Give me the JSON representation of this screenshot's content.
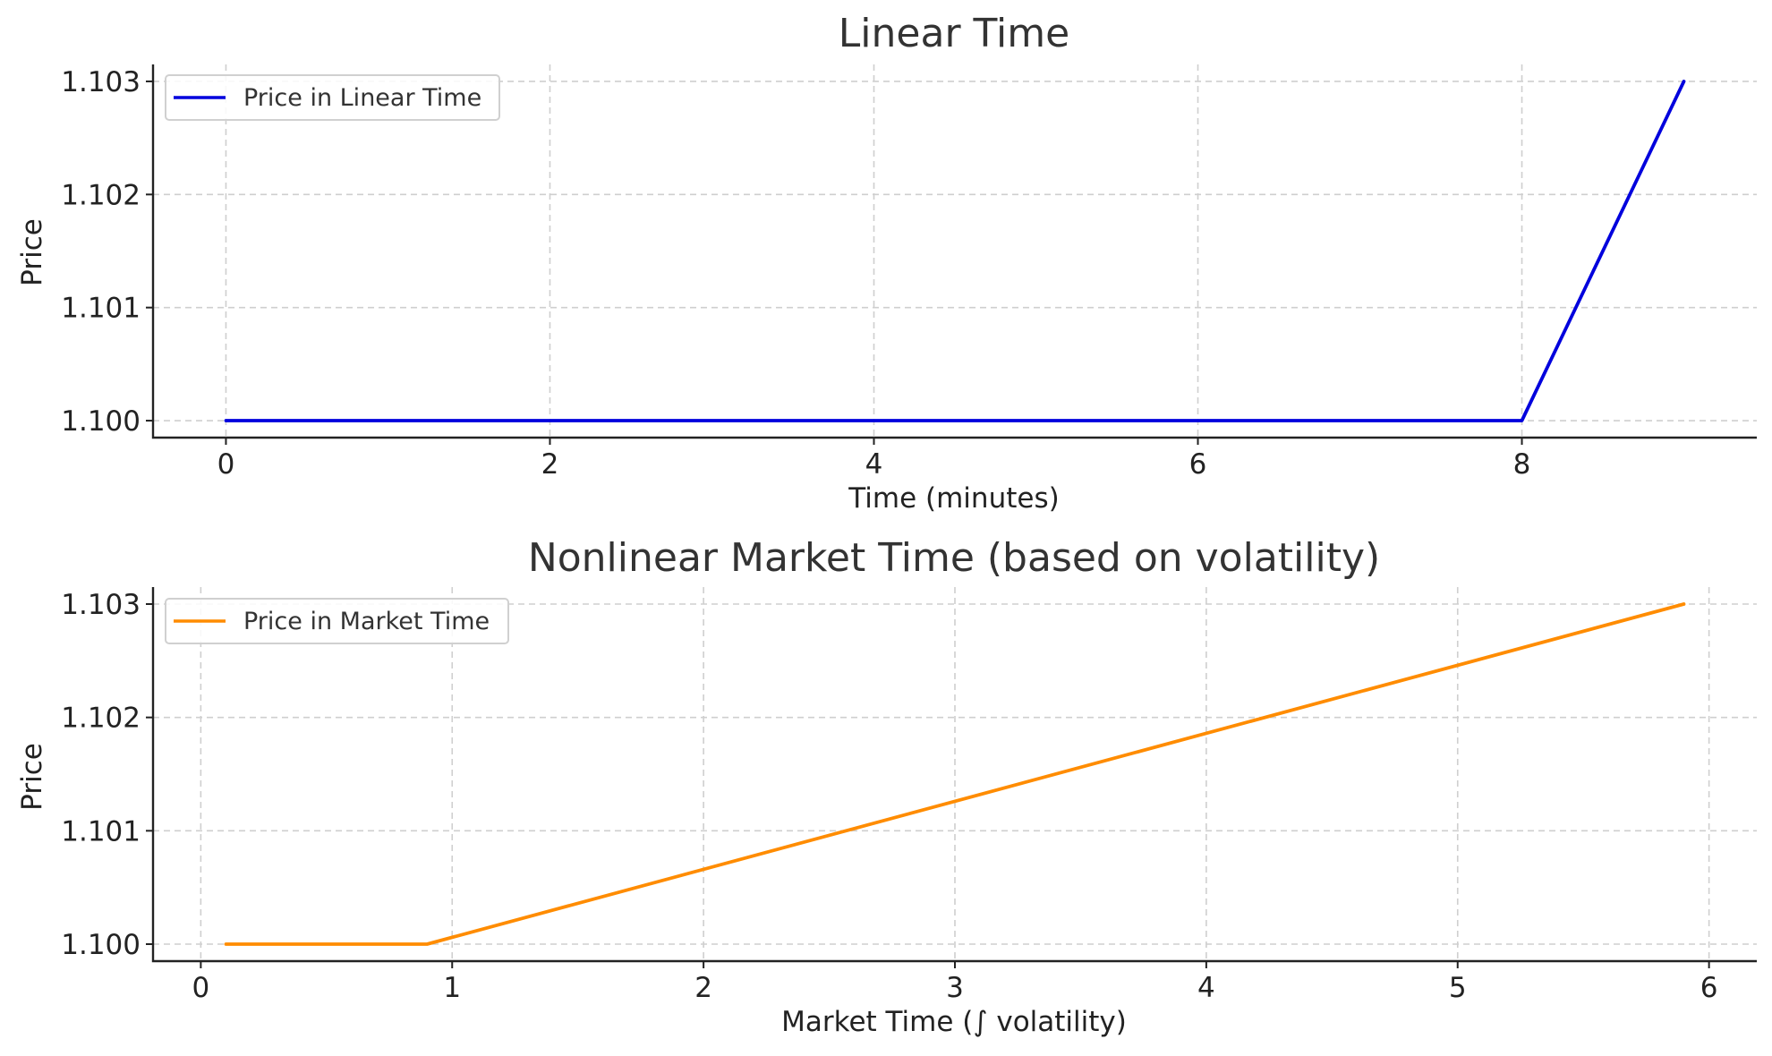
{
  "chart_data": [
    {
      "type": "line",
      "title": "Linear Time",
      "xlabel": "Time (minutes)",
      "ylabel": "Price",
      "xlim": [
        -0.45,
        9.45
      ],
      "ylim": [
        1.09985,
        1.10315
      ],
      "xticks": [
        0,
        2,
        4,
        6,
        8
      ],
      "xtick_labels": [
        "0",
        "2",
        "4",
        "6",
        "8"
      ],
      "yticks": [
        1.1,
        1.101,
        1.102,
        1.103
      ],
      "ytick_labels": [
        "1.100",
        "1.101",
        "1.102",
        "1.103"
      ],
      "grid": true,
      "legend_position": "top-left",
      "series": [
        {
          "name": "Price in Linear Time",
          "color": "#0000dd",
          "x": [
            0,
            1,
            2,
            3,
            4,
            5,
            6,
            7,
            8,
            9
          ],
          "y": [
            1.1,
            1.1,
            1.1,
            1.1,
            1.1,
            1.1,
            1.1,
            1.1,
            1.1,
            1.103
          ]
        }
      ]
    },
    {
      "type": "line",
      "title": "Nonlinear Market Time (based on volatility)",
      "xlabel": "Market Time (∫ volatility)",
      "ylabel": "Price",
      "xlim": [
        -0.19,
        6.19
      ],
      "ylim": [
        1.09985,
        1.10315
      ],
      "xticks": [
        0,
        1,
        2,
        3,
        4,
        5,
        6
      ],
      "xtick_labels": [
        "0",
        "1",
        "2",
        "3",
        "4",
        "5",
        "6"
      ],
      "yticks": [
        1.1,
        1.101,
        1.102,
        1.103
      ],
      "ytick_labels": [
        "1.100",
        "1.101",
        "1.102",
        "1.103"
      ],
      "grid": true,
      "legend_position": "top-left",
      "series": [
        {
          "name": "Price in Market Time",
          "color": "#ff8c00",
          "x": [
            0.1,
            0.9,
            5.9
          ],
          "y": [
            1.1,
            1.1,
            1.103
          ]
        }
      ]
    }
  ]
}
